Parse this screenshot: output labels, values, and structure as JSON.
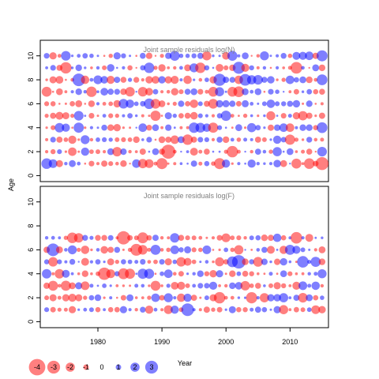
{
  "chart_data": [
    {
      "type": "scatter",
      "subtype": "bubble",
      "title": "Joint sample residuals log(N)",
      "xlabel": "Year",
      "ylabel": "Age",
      "xlim": [
        1971,
        2016
      ],
      "ylim": [
        -0.5,
        11.3
      ],
      "x_ticks": [
        "1980",
        "1990",
        "2000",
        "2010"
      ],
      "y_ticks": [
        "0",
        "2",
        "4",
        "6",
        "8",
        "10"
      ],
      "x_years": [
        1972,
        2015
      ],
      "y_ages": [
        1,
        10
      ],
      "grid": false,
      "colors": {
        "positive": "#ff0000",
        "negative": "#0000ff"
      },
      "seed": 12345
    },
    {
      "type": "scatter",
      "subtype": "bubble",
      "title": "Joint sample residuals log(F)",
      "xlabel": "Year",
      "ylabel": "Age",
      "xlim": [
        1971,
        2016
      ],
      "ylim": [
        -0.5,
        11.3
      ],
      "x_ticks": [
        "1980",
        "1990",
        "2000",
        "2010"
      ],
      "y_ticks": [
        "0",
        "2",
        "4",
        "6",
        "8",
        "10"
      ],
      "x_years": [
        1972,
        2015
      ],
      "y_ages": [
        1,
        7
      ],
      "grid": false,
      "colors": {
        "positive": "#ff0000",
        "negative": "#0000ff"
      },
      "seed": 98765
    }
  ],
  "shared_labels": {
    "ylabel": "Age",
    "xlabel": "Year"
  },
  "legend": {
    "entries": [
      "-4",
      "-3",
      "-2",
      "-1",
      "0",
      "1",
      "2",
      "3"
    ],
    "values": [
      -4,
      -3,
      -2,
      -1,
      0,
      1,
      2,
      3
    ]
  }
}
